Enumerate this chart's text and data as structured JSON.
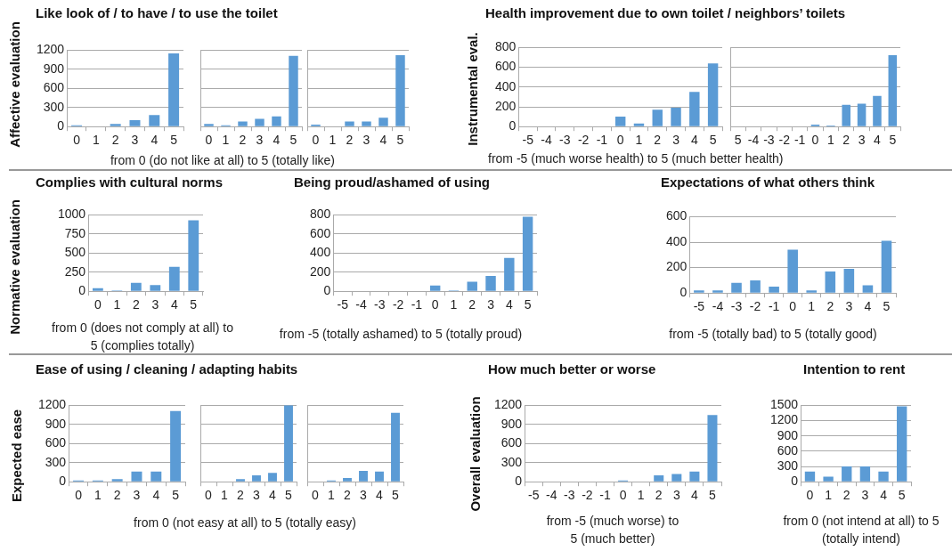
{
  "chart_data": [
    {
      "type": "bar",
      "title": "Like look of / to have / to use the toilet",
      "ylabel": "Affective evaluation",
      "categories": [
        "0",
        "1",
        "2",
        "3",
        "4",
        "5"
      ],
      "values": [
        20,
        0,
        40,
        100,
        180,
        1150
      ],
      "color": "#5b9bd5",
      "ylim": [
        0,
        1200
      ],
      "yticks": [
        0,
        300,
        600,
        900,
        1200
      ],
      "grid": "y"
    },
    {
      "type": "bar",
      "xlabel": "from 0 (do not like at all) to 5 (totally like)",
      "categories": [
        "0",
        "1",
        "2",
        "3",
        "4",
        "5"
      ],
      "values": [
        40,
        20,
        80,
        120,
        160,
        1110
      ],
      "color": "#5b9bd5",
      "ylim": [
        0,
        1200
      ],
      "yticks": [
        0,
        300,
        600,
        900,
        1200
      ],
      "grid": "y",
      "tick_labels": "x"
    },
    {
      "type": "bar",
      "categories": [
        "0",
        "1",
        "2",
        "3",
        "4",
        "5"
      ],
      "values": [
        30,
        0,
        80,
        80,
        140,
        1120
      ],
      "color": "#5b9bd5",
      "ylim": [
        0,
        1200
      ],
      "yticks": [
        0,
        300,
        600,
        900,
        1200
      ],
      "grid": "y",
      "tick_labels": "x"
    },
    {
      "type": "bar",
      "title": "Health improvement due to own toilet / neighbors’ toilets",
      "ylabel": "Instrumental eval.",
      "xlabel": "from -5 (much worse health) to 5 (much better health)",
      "categories": [
        "-5",
        "-4",
        "-3",
        "-2",
        "-1",
        "0",
        "1",
        "2",
        "3",
        "4",
        "5"
      ],
      "values": [
        0,
        0,
        0,
        0,
        0,
        100,
        30,
        170,
        190,
        350,
        640
      ],
      "color": "#5b9bd5",
      "ylim": [
        0,
        800
      ],
      "yticks": [
        0,
        200,
        400,
        600,
        800
      ],
      "grid": "y"
    },
    {
      "type": "bar",
      "categories": [
        "5",
        "-4",
        "-3",
        "-2",
        "-1",
        "0",
        "1",
        "2",
        "3",
        "4",
        "5"
      ],
      "values": [
        0,
        0,
        0,
        0,
        0,
        20,
        10,
        220,
        230,
        310,
        720
      ],
      "color": "#5b9bd5",
      "ylim": [
        0,
        800
      ],
      "yticks": [
        0,
        200,
        400,
        600,
        800
      ],
      "grid": "y",
      "tick_labels": "x"
    },
    {
      "type": "bar",
      "title": "Complies with cultural norms",
      "ylabel": "Normative evaluation",
      "xlabel": "from 0 (does not comply at all) to 5 (complies totally)",
      "categories": [
        "0",
        "1",
        "2",
        "3",
        "4",
        "5"
      ],
      "values": [
        40,
        10,
        110,
        80,
        320,
        930
      ],
      "color": "#5b9bd5",
      "ylim": [
        0,
        1000
      ],
      "yticks": [
        0,
        250,
        500,
        750,
        1000
      ],
      "grid": "y"
    },
    {
      "type": "bar",
      "title": "Being proud/ashamed of using",
      "xlabel": "from -5 (totally ashamed) to 5 (totally proud)",
      "categories": [
        "-5",
        "-4",
        "-3",
        "-2",
        "-1",
        "0",
        "1",
        "2",
        "3",
        "4",
        "5"
      ],
      "values": [
        0,
        0,
        0,
        0,
        0,
        60,
        10,
        100,
        160,
        350,
        780
      ],
      "color": "#5b9bd5",
      "ylim": [
        0,
        800
      ],
      "yticks": [
        0,
        200,
        400,
        600,
        800
      ],
      "grid": "y"
    },
    {
      "type": "bar",
      "title": "Expectations of what others think",
      "xlabel": "from -5 (totally bad) to 5 (totally good)",
      "categories": [
        "-5",
        "-4",
        "-3",
        "-2",
        "-1",
        "0",
        "1",
        "2",
        "3",
        "4",
        "5"
      ],
      "values": [
        20,
        20,
        80,
        100,
        50,
        340,
        20,
        170,
        190,
        60,
        410
      ],
      "color": "#5b9bd5",
      "ylim": [
        0,
        600
      ],
      "yticks": [
        0,
        200,
        400,
        600
      ],
      "grid": "y"
    },
    {
      "type": "bar",
      "title": "Ease of using / cleaning / adapting habits",
      "ylabel": "Expected ease",
      "categories": [
        "0",
        "1",
        "2",
        "3",
        "4",
        "5"
      ],
      "values": [
        20,
        20,
        40,
        160,
        160,
        1110
      ],
      "color": "#5b9bd5",
      "ylim": [
        0,
        1200
      ],
      "yticks": [
        0,
        300,
        600,
        900,
        1200
      ],
      "grid": "y"
    },
    {
      "type": "bar",
      "xlabel": "from 0 (not easy at all) to 5 (totally easy)",
      "categories": [
        "0",
        "1",
        "2",
        "3",
        "4",
        "5"
      ],
      "values": [
        0,
        0,
        40,
        100,
        140,
        1200
      ],
      "color": "#5b9bd5",
      "ylim": [
        0,
        1200
      ],
      "yticks": [
        0,
        300,
        600,
        900,
        1200
      ],
      "grid": "y",
      "tick_labels": "x"
    },
    {
      "type": "bar",
      "categories": [
        "0",
        "1",
        "2",
        "3",
        "4",
        "5"
      ],
      "values": [
        0,
        20,
        60,
        170,
        160,
        1080
      ],
      "color": "#5b9bd5",
      "ylim": [
        0,
        1200
      ],
      "yticks": [
        0,
        300,
        600,
        900,
        1200
      ],
      "grid": "y",
      "tick_labels": "x"
    },
    {
      "type": "bar",
      "title": "How much better or worse",
      "ylabel": "Overall evaluation",
      "xlabel": "from -5 (much worse) to 5 (much better)",
      "categories": [
        "-5",
        "-4",
        "-3",
        "-2",
        "-1",
        "0",
        "1",
        "2",
        "3",
        "4",
        "5"
      ],
      "values": [
        0,
        0,
        0,
        0,
        0,
        20,
        0,
        100,
        120,
        160,
        1050
      ],
      "color": "#5b9bd5",
      "ylim": [
        0,
        1200
      ],
      "yticks": [
        0,
        300,
        600,
        900,
        1200
      ],
      "grid": "y"
    },
    {
      "type": "bar",
      "title": "Intention to rent",
      "xlabel": "from 0 (not intend at all) to 5 (totally intend)",
      "categories": [
        "0",
        "1",
        "2",
        "3",
        "4",
        "5"
      ],
      "values": [
        200,
        100,
        300,
        300,
        200,
        1480
      ],
      "color": "#5b9bd5",
      "ylim": [
        0,
        1500
      ],
      "yticks": [
        0,
        300,
        600,
        900,
        1200,
        1500
      ],
      "grid": "y"
    }
  ]
}
